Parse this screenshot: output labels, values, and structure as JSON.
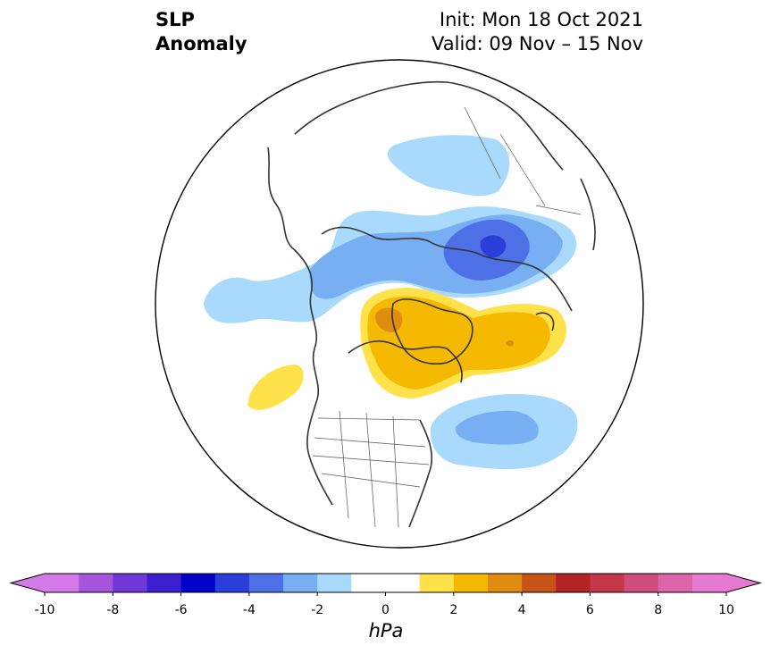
{
  "header": {
    "title_line1": "SLP",
    "title_line2": "Anomaly",
    "init_text": "Init: Mon 18 Oct 2021",
    "valid_text": "Valid: 09 Nov – 15 Nov"
  },
  "colorbar": {
    "unit": "hPa",
    "ticks": [
      "-10",
      "-8",
      "-6",
      "-4",
      "-2",
      "0",
      "2",
      "4",
      "6",
      "8",
      "10"
    ],
    "levels": [
      -10,
      -9,
      -8,
      -7,
      -6,
      -5,
      -4,
      -3,
      -2,
      -1,
      1,
      2,
      3,
      4,
      5,
      6,
      7,
      8,
      9,
      10
    ],
    "colors": [
      "#d37ae8",
      "#a555dc",
      "#7038d6",
      "#3b1fd1",
      "#0000c8",
      "#2a3fd9",
      "#4e70e6",
      "#78aef2",
      "#a9d9fb",
      "#ffffff",
      "#ffe14a",
      "#f4b900",
      "#de8d10",
      "#c85418",
      "#b32424",
      "#c43748",
      "#cf4d7d",
      "#db65a8",
      "#e67ad2"
    ],
    "under_color": "#d37ae8",
    "over_color": "#e67ad2"
  },
  "map": {
    "projection": "north-polar-stereographic",
    "land_color": "#fefefe",
    "coast_color": "#333333",
    "anomaly_features": [
      "negative anomaly band over Siberia / Arctic Ocean (min about -4 to -5 hPa)",
      "positive anomaly over Greenland and Canadian Arctic (max about +3 to +4 hPa)",
      "positive anomaly over Gulf of Alaska (+1 to +2 hPa)",
      "negative anomaly over North Atlantic (about -2 to -3 hPa)"
    ]
  }
}
